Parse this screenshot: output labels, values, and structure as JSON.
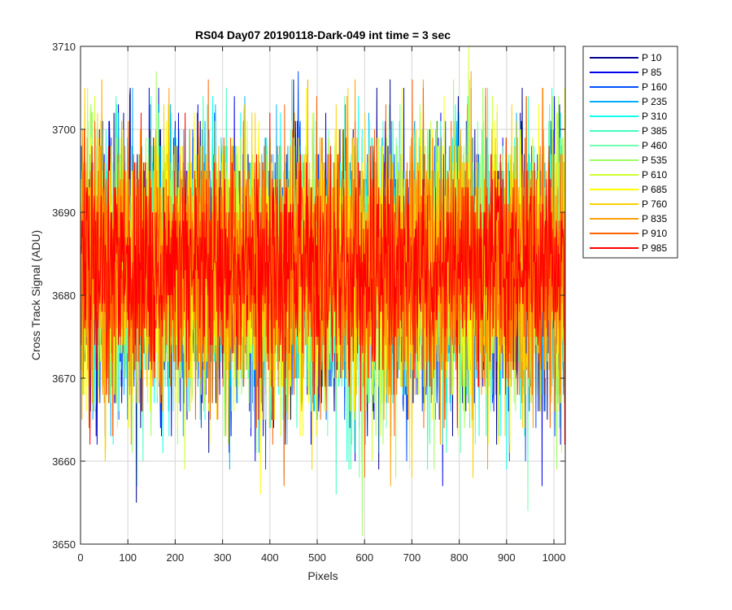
{
  "chart_data": {
    "type": "line",
    "title": "RS04 Day07 20190118-Dark-049 int time = 3 sec",
    "xlabel": "Pixels",
    "ylabel": "Cross Track Signal (ADU)",
    "xlim": [
      0,
      1024
    ],
    "ylim": [
      3650,
      3710
    ],
    "xticks": [
      0,
      100,
      200,
      300,
      400,
      500,
      600,
      700,
      800,
      900,
      1000
    ],
    "yticks": [
      3650,
      3660,
      3670,
      3680,
      3690,
      3700,
      3710
    ],
    "grid": true,
    "legend_position": "outside-right-top",
    "x_range": [
      1,
      1024
    ],
    "series": [
      {
        "name": "P 10",
        "color": "#00008f",
        "mean": 3683,
        "spread": 7.8,
        "seed": 11,
        "spikes": [
          [
            118,
            3655
          ],
          [
            105,
            3705
          ],
          [
            450,
            3706
          ],
          [
            630,
            3659
          ]
        ]
      },
      {
        "name": "P 85",
        "color": "#0000ef",
        "mean": 3683,
        "spread": 7.8,
        "seed": 23,
        "spikes": [
          [
            145,
            3705
          ],
          [
            325,
            3704
          ],
          [
            765,
            3657
          ],
          [
            975,
            3657
          ]
        ]
      },
      {
        "name": "P 160",
        "color": "#0050ff",
        "mean": 3683,
        "spread": 7.8,
        "seed": 37,
        "spikes": [
          [
            460,
            3707
          ],
          [
            825,
            3705
          ],
          [
            940,
            3660
          ]
        ]
      },
      {
        "name": "P 235",
        "color": "#00afff",
        "mean": 3683,
        "spread": 7.8,
        "seed": 41,
        "spikes": [
          [
            110,
            3705
          ],
          [
            315,
            3659
          ],
          [
            285,
            3703
          ]
        ]
      },
      {
        "name": "P 310",
        "color": "#10ffef",
        "mean": 3683,
        "spread": 7.8,
        "seed": 53,
        "spikes": [
          [
            430,
            3658
          ],
          [
            900,
            3659
          ],
          [
            595,
            3700
          ]
        ]
      },
      {
        "name": "P 385",
        "color": "#40ffbf",
        "mean": 3683,
        "spread": 7.8,
        "seed": 67,
        "spikes": [
          [
            75,
            3704
          ],
          [
            860,
            3705
          ],
          [
            540,
            3656
          ]
        ]
      },
      {
        "name": "P 460",
        "color": "#70ffb0",
        "mean": 3683,
        "spread": 7.8,
        "seed": 71,
        "spikes": [
          [
            945,
            3654
          ],
          [
            120,
            3657
          ],
          [
            675,
            3703
          ]
        ]
      },
      {
        "name": "P 535",
        "color": "#9fff60",
        "mean": 3683,
        "spread": 7.8,
        "seed": 83,
        "spikes": [
          [
            595,
            3651
          ],
          [
            160,
            3707
          ],
          [
            1010,
            3704
          ]
        ]
      },
      {
        "name": "P 610",
        "color": "#cfff30",
        "mean": 3683,
        "spread": 7.8,
        "seed": 97,
        "spikes": [
          [
            820,
            3710
          ],
          [
            30,
            3704
          ],
          [
            220,
            3659
          ]
        ]
      },
      {
        "name": "P 685",
        "color": "#ffff00",
        "mean": 3683,
        "spread": 7.8,
        "seed": 101,
        "spikes": [
          [
            380,
            3656
          ],
          [
            240,
            3702
          ],
          [
            880,
            3703
          ]
        ]
      },
      {
        "name": "P 760",
        "color": "#ffcf00",
        "mean": 3683,
        "spread": 7.8,
        "seed": 113,
        "spikes": [
          [
            565,
            3705
          ],
          [
            345,
            3702
          ],
          [
            700,
            3658
          ]
        ]
      },
      {
        "name": "P 835",
        "color": "#ff9f00",
        "mean": 3683,
        "spread": 7.8,
        "seed": 127,
        "spikes": [
          [
            655,
            3657
          ],
          [
            825,
            3707
          ],
          [
            45,
            3706
          ]
        ]
      },
      {
        "name": "P 910",
        "color": "#ff6000",
        "mean": 3683,
        "spread": 7.8,
        "seed": 131,
        "spikes": [
          [
            270,
            3706
          ],
          [
            600,
            3658
          ],
          [
            430,
            3657
          ]
        ]
      },
      {
        "name": "P 985",
        "color": "#ff0000",
        "mean": 3683,
        "spread": 6.5,
        "seed": 149,
        "spikes": [
          [
            20,
            3662
          ],
          [
            990,
            3698
          ]
        ]
      }
    ]
  }
}
